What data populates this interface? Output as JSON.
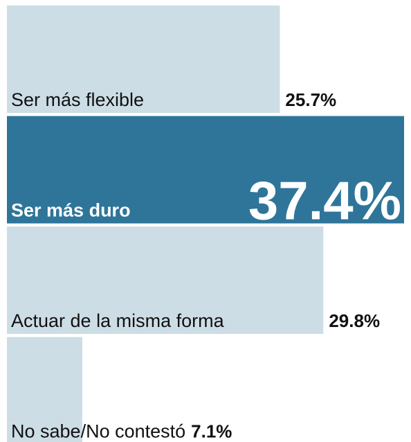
{
  "chart_data": {
    "type": "bar",
    "orientation": "horizontal",
    "categories": [
      "Ser más flexible",
      "Ser más duro",
      "Actuar de la misma forma",
      "No sabe/No contestó"
    ],
    "values": [
      25.7,
      37.4,
      29.8,
      7.1
    ],
    "value_labels": [
      "25.7%",
      "37.4%",
      "29.8%",
      "7.1%"
    ],
    "colors": [
      "#cddde6",
      "#2e7599",
      "#cddde6",
      "#cddde6"
    ],
    "xlim": [
      0,
      37.4
    ]
  }
}
